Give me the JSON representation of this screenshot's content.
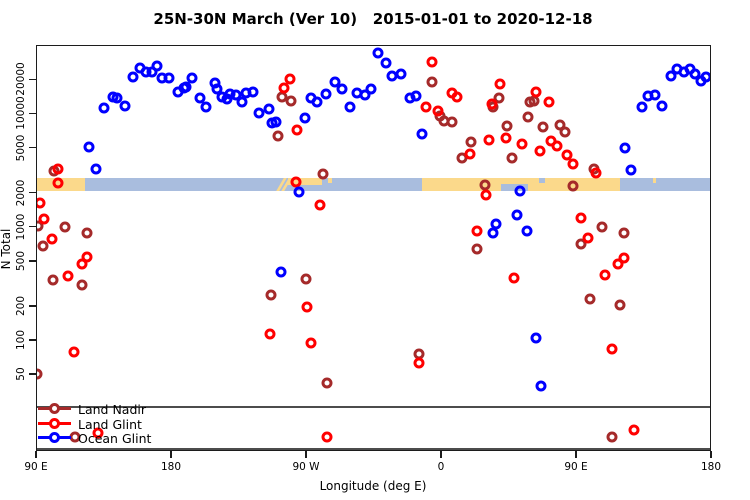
{
  "title": "25N-30N March (Ver 10)   2015-01-01 to 2020-12-18",
  "axes": {
    "x": {
      "label": "Longitude (deg E)",
      "range_deg_wrapped": [
        90,
        540
      ],
      "ticks": [
        {
          "v": 90,
          "label": "90 E"
        },
        {
          "v": 180,
          "label": "180"
        },
        {
          "v": 270,
          "label": "90 W"
        },
        {
          "v": 360,
          "label": "0"
        },
        {
          "v": 450,
          "label": "90 E"
        },
        {
          "v": 540,
          "label": "180"
        }
      ]
    },
    "y": {
      "label": "N Total",
      "scale": "log10",
      "ticks": [
        50,
        100,
        200,
        500,
        1000,
        2000,
        5000,
        10000,
        20000
      ],
      "range": [
        11,
        40000
      ]
    }
  },
  "legend": {
    "items": [
      {
        "label": "Land Nadir",
        "color": "#A52A2A"
      },
      {
        "label": "Land Glint",
        "color": "#FF0000"
      },
      {
        "label": "Ocean Glint",
        "color": "#0000FF"
      }
    ]
  },
  "chart_data": {
    "type": "scatter",
    "title": "25N-30N March (Ver 10)   2015-01-01 to 2020-12-18",
    "xlabel": "Longitude (deg E)",
    "ylabel": "N Total",
    "x_is_longitude_wrapped_from_90E": true,
    "map_band": {
      "description": "land/ocean strip for 25N-30N drawn across plot at N~2100-2700",
      "colors": {
        "land": "#FBD98B",
        "ocean": "#A9BDDE"
      },
      "segments": [
        {
          "type": "land",
          "from": 90,
          "to": 122.5
        },
        {
          "type": "ocean",
          "from": 122.5,
          "to": 347.5
        },
        {
          "type": "land",
          "from": 347.5,
          "to": 479.5
        },
        {
          "type": "ocean",
          "from": 479.5,
          "to": 540
        }
      ],
      "details": [
        {
          "type": "land",
          "from": 252.5,
          "to": 254.5,
          "v": "full",
          "skew": true
        },
        {
          "type": "land",
          "from": 256,
          "to": 258,
          "v": "full",
          "skew": true
        },
        {
          "type": "land",
          "from": 258,
          "to": 280.5,
          "v": "top"
        },
        {
          "type": "land",
          "from": 284.5,
          "to": 287,
          "v": "top-sm"
        },
        {
          "type": "ocean",
          "from": 400,
          "to": 418,
          "v": "bottom"
        },
        {
          "type": "ocean",
          "from": 425,
          "to": 429,
          "v": "top-sm"
        },
        {
          "type": "land",
          "from": 501.5,
          "to": 503.5,
          "v": "top-sm"
        }
      ]
    },
    "series": [
      {
        "name": "Land Nadir",
        "color": "#A52A2A",
        "points": [
          [
            102,
            3100
          ],
          [
            91,
            1010
          ],
          [
            94.5,
            676
          ],
          [
            109.5,
            989
          ],
          [
            124,
            875
          ],
          [
            101,
            336
          ],
          [
            120.5,
            305
          ],
          [
            90.5,
            50
          ],
          [
            251,
            6360
          ],
          [
            254,
            14000
          ],
          [
            260,
            12900
          ],
          [
            354,
            18800
          ],
          [
            359,
            9480
          ],
          [
            362,
            8570
          ],
          [
            367.5,
            8340
          ],
          [
            374,
            4020
          ],
          [
            380,
            5630
          ],
          [
            281.5,
            2900
          ],
          [
            389,
            2330
          ],
          [
            398.5,
            13800
          ],
          [
            394.5,
            11500
          ],
          [
            404,
            7800
          ],
          [
            419.5,
            12500
          ],
          [
            418,
            9350
          ],
          [
            428,
            7640
          ],
          [
            439,
            7910
          ],
          [
            442.5,
            6810
          ],
          [
            407,
            4070
          ],
          [
            462,
            3230
          ],
          [
            448,
            2270
          ],
          [
            467,
            989
          ],
          [
            482,
            885
          ],
          [
            453.5,
            703
          ],
          [
            459,
            229
          ],
          [
            479,
            204
          ],
          [
            474,
            14
          ],
          [
            384,
            632
          ],
          [
            270,
            344
          ],
          [
            246.5,
            250
          ],
          [
            345,
            75
          ],
          [
            284,
            42
          ],
          [
            116,
            14
          ],
          [
            422,
            12900
          ]
        ]
      },
      {
        "name": "Land Glint",
        "color": "#FF0000",
        "points": [
          [
            104.5,
            3230
          ],
          [
            104.5,
            2430
          ],
          [
            92.5,
            1620
          ],
          [
            95,
            1160
          ],
          [
            100.5,
            774
          ],
          [
            124,
            543
          ],
          [
            120.5,
            469
          ],
          [
            111,
            367
          ],
          [
            115.5,
            79
          ],
          [
            131,
            15
          ],
          [
            259.5,
            20100
          ],
          [
            255.5,
            16700
          ],
          [
            264,
            7140
          ],
          [
            279.5,
            1560
          ],
          [
            354,
            28600
          ],
          [
            367.5,
            15200
          ],
          [
            370.5,
            14000
          ],
          [
            350,
            11300
          ],
          [
            358,
            10500
          ],
          [
            392,
            5820
          ],
          [
            379,
            4360
          ],
          [
            263.5,
            2500
          ],
          [
            390,
            1910
          ],
          [
            399,
            18200
          ],
          [
            394,
            12000
          ],
          [
            423.5,
            15600
          ],
          [
            432,
            12700
          ],
          [
            403,
            6110
          ],
          [
            414,
            5330
          ],
          [
            426,
            4660
          ],
          [
            433.5,
            5700
          ],
          [
            437.5,
            5190
          ],
          [
            444,
            4290
          ],
          [
            448,
            3560
          ],
          [
            463.5,
            2980
          ],
          [
            453,
            1190
          ],
          [
            458,
            800
          ],
          [
            482,
            526
          ],
          [
            478,
            469
          ],
          [
            469.5,
            375
          ],
          [
            408.5,
            350
          ],
          [
            474,
            83
          ],
          [
            488.5,
            16
          ],
          [
            270.5,
            194
          ],
          [
            246,
            113
          ],
          [
            273,
            95
          ],
          [
            345,
            63
          ],
          [
            284,
            14
          ],
          [
            384,
            916
          ]
        ]
      },
      {
        "name": "Ocean Glint",
        "color": "#0000FF",
        "points": [
          [
            135,
            11100
          ],
          [
            141,
            14000
          ],
          [
            144,
            13800
          ],
          [
            149.5,
            11600
          ],
          [
            154.5,
            21100
          ],
          [
            159,
            25000
          ],
          [
            163,
            23000
          ],
          [
            167,
            23300
          ],
          [
            170.5,
            26400
          ],
          [
            174,
            20400
          ],
          [
            178.5,
            20700
          ],
          [
            184.5,
            15600
          ],
          [
            188.5,
            16700
          ],
          [
            190,
            17200
          ],
          [
            194,
            20700
          ],
          [
            199,
            13600
          ],
          [
            203,
            11500
          ],
          [
            209,
            18500
          ],
          [
            210.5,
            16400
          ],
          [
            214,
            14000
          ],
          [
            217,
            13400
          ],
          [
            219.5,
            14700
          ],
          [
            223,
            14500
          ],
          [
            227,
            12500
          ],
          [
            230,
            15200
          ],
          [
            234.5,
            15600
          ],
          [
            238.5,
            10000
          ],
          [
            125,
            5080
          ],
          [
            130,
            3230
          ],
          [
            245.5,
            10900
          ],
          [
            247.5,
            8180
          ],
          [
            250,
            8340
          ],
          [
            269.5,
            9160
          ],
          [
            273.5,
            13800
          ],
          [
            277,
            12500
          ],
          [
            283.5,
            14700
          ],
          [
            289.5,
            18800
          ],
          [
            294,
            16400
          ],
          [
            299.5,
            11500
          ],
          [
            304,
            15000
          ],
          [
            309,
            14500
          ],
          [
            313.5,
            16400
          ],
          [
            318,
            33900
          ],
          [
            323,
            27700
          ],
          [
            327.5,
            21500
          ],
          [
            333,
            22100
          ],
          [
            339,
            13800
          ],
          [
            343,
            14300
          ],
          [
            347.5,
            6530
          ],
          [
            265.5,
            2040
          ],
          [
            253.5,
            400
          ],
          [
            396.5,
            1060
          ],
          [
            394.5,
            880
          ],
          [
            412.5,
            2070
          ],
          [
            410.5,
            1270
          ],
          [
            417.5,
            920
          ],
          [
            423.5,
            105
          ],
          [
            426.5,
            39
          ],
          [
            482.5,
            4980
          ],
          [
            486.5,
            3170
          ],
          [
            513,
            21500
          ],
          [
            517.5,
            24700
          ],
          [
            522,
            23000
          ],
          [
            526,
            24700
          ],
          [
            529.5,
            22100
          ],
          [
            533,
            19300
          ],
          [
            536.5,
            21100
          ],
          [
            498,
            14300
          ],
          [
            502.5,
            14500
          ],
          [
            494,
            11300
          ],
          [
            507,
            11700
          ]
        ]
      }
    ]
  }
}
